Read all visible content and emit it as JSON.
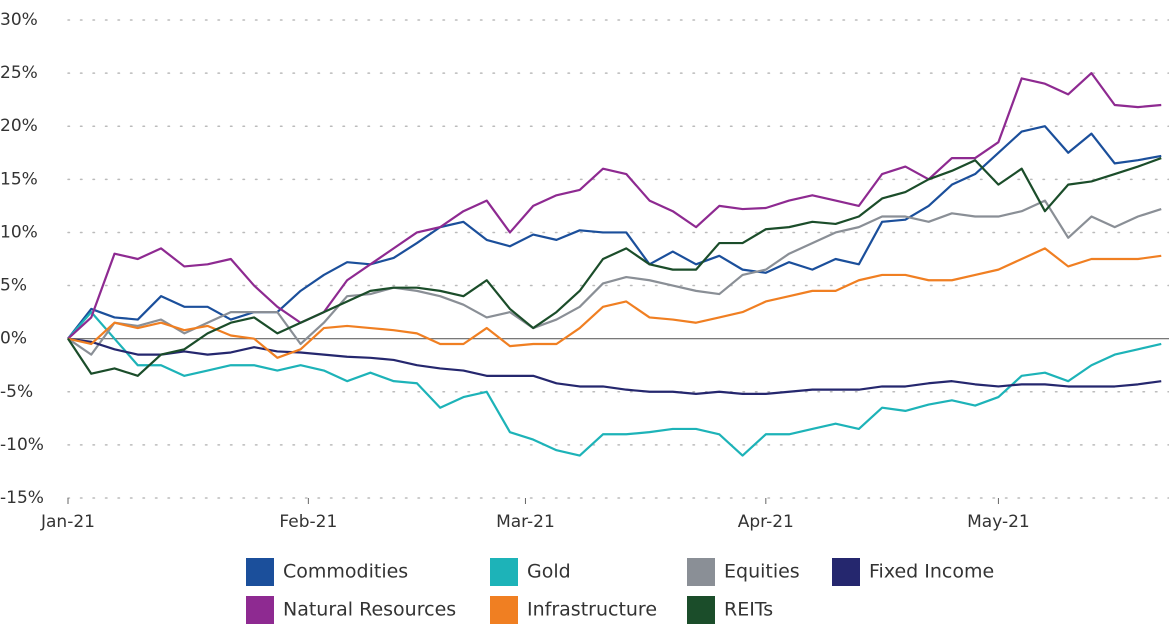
{
  "chart_data": {
    "type": "line",
    "x": [
      0,
      3,
      6,
      9,
      12,
      15,
      18,
      21,
      24,
      27,
      30,
      33,
      36,
      39,
      42,
      45,
      48,
      51,
      54,
      57,
      60,
      63,
      66,
      69,
      72,
      75,
      78,
      81,
      84,
      87,
      90,
      93,
      96,
      99,
      102,
      105,
      108,
      111,
      114,
      117,
      120,
      123,
      126,
      129,
      132,
      135,
      138,
      141
    ],
    "xlim": [
      0,
      142
    ],
    "xticks": [
      {
        "value": 0,
        "label": "Jan-21"
      },
      {
        "value": 31,
        "label": "Feb-21"
      },
      {
        "value": 59,
        "label": "Mar-21"
      },
      {
        "value": 90,
        "label": "Apr-21"
      },
      {
        "value": 120,
        "label": "May-21"
      }
    ],
    "ylim": [
      -15,
      30
    ],
    "yticks": [
      {
        "value": -15,
        "label": "-15%"
      },
      {
        "value": -10,
        "label": "-10%"
      },
      {
        "value": -5,
        "label": "-5%"
      },
      {
        "value": 0,
        "label": "0%"
      },
      {
        "value": 5,
        "label": "5%"
      },
      {
        "value": 10,
        "label": "10%"
      },
      {
        "value": 15,
        "label": "15%"
      },
      {
        "value": 20,
        "label": "20%"
      },
      {
        "value": 25,
        "label": "25%"
      },
      {
        "value": 30,
        "label": "30%"
      }
    ],
    "grid": true,
    "series": [
      {
        "name": "Commodities",
        "color": "#1b4f9b",
        "values": [
          0,
          2.8,
          2,
          1.8,
          4,
          3,
          3,
          1.8,
          2.5,
          2.5,
          4.5,
          6,
          7.2,
          7,
          7.6,
          9,
          10.5,
          11,
          9.3,
          8.7,
          9.8,
          9.3,
          10.2,
          10,
          10,
          7,
          8.2,
          7,
          7.8,
          6.5,
          6.2,
          7.2,
          6.5,
          7.5,
          7,
          11,
          11.2,
          12.5,
          14.5,
          15.5,
          17.5,
          19.5,
          20,
          17.5,
          19.3,
          16.5,
          16.8,
          17.2
        ]
      },
      {
        "name": "Gold",
        "color": "#1db3b8",
        "values": [
          0,
          2.5,
          0,
          -2.5,
          -2.5,
          -3.5,
          -3,
          -2.5,
          -2.5,
          -3,
          -2.5,
          -3,
          -4,
          -3.2,
          -4,
          -4.2,
          -6.5,
          -5.5,
          -5,
          -8.8,
          -9.5,
          -10.5,
          -11,
          -9,
          -9,
          -8.8,
          -8.5,
          -8.5,
          -9,
          -11,
          -9,
          -9,
          -8.5,
          -8,
          -8.5,
          -6.5,
          -6.8,
          -6.2,
          -5.8,
          -6.3,
          -5.5,
          -3.5,
          -3.2,
          -4,
          -2.5,
          -1.5,
          -1,
          -0.5
        ]
      },
      {
        "name": "Equities",
        "color": "#8a8f96",
        "values": [
          0,
          -1.5,
          1.5,
          1.2,
          1.8,
          0.5,
          1.5,
          2.5,
          2.5,
          2.5,
          -0.5,
          1.5,
          4,
          4.2,
          4.8,
          4.5,
          4,
          3.2,
          2,
          2.5,
          1,
          1.8,
          3,
          5.2,
          5.8,
          5.5,
          5,
          4.5,
          4.2,
          6,
          6.5,
          8,
          9,
          10,
          10.5,
          11.5,
          11.5,
          11,
          11.8,
          11.5,
          11.5,
          12,
          13,
          9.5,
          11.5,
          10.5,
          11.5,
          12.2
        ]
      },
      {
        "name": "Fixed Income",
        "color": "#25276e",
        "values": [
          0,
          -0.3,
          -1,
          -1.5,
          -1.5,
          -1.2,
          -1.5,
          -1.3,
          -0.8,
          -1.2,
          -1.3,
          -1.5,
          -1.7,
          -1.8,
          -2,
          -2.5,
          -2.8,
          -3,
          -3.5,
          -3.5,
          -3.5,
          -4.2,
          -4.5,
          -4.5,
          -4.8,
          -5,
          -5,
          -5.2,
          -5,
          -5.2,
          -5.2,
          -5,
          -4.8,
          -4.8,
          -4.8,
          -4.5,
          -4.5,
          -4.2,
          -4,
          -4.3,
          -4.5,
          -4.3,
          -4.3,
          -4.5,
          -4.5,
          -4.5,
          -4.3,
          -4
        ]
      },
      {
        "name": "Natural Resources",
        "color": "#8e2a91",
        "values": [
          0,
          2,
          8,
          7.5,
          8.5,
          6.8,
          7,
          7.5,
          5,
          3,
          1.5,
          2.5,
          5.5,
          7,
          8.5,
          10,
          10.5,
          12,
          13,
          10,
          12.5,
          13.5,
          14,
          16,
          15.5,
          13,
          12,
          10.5,
          12.5,
          12.2,
          12.3,
          13,
          13.5,
          13,
          12.5,
          15.5,
          16.2,
          15,
          17,
          17,
          18.5,
          24.5,
          24,
          23,
          25,
          22,
          21.8,
          22
        ]
      },
      {
        "name": "Infrastructure",
        "color": "#f07f22",
        "values": [
          0,
          -0.5,
          1.5,
          1,
          1.5,
          0.8,
          1.2,
          0.3,
          0,
          -1.8,
          -1,
          1,
          1.2,
          1,
          0.8,
          0.5,
          -0.5,
          -0.5,
          1,
          -0.7,
          -0.5,
          -0.5,
          1,
          3,
          3.5,
          2,
          1.8,
          1.5,
          2,
          2.5,
          3.5,
          4,
          4.5,
          4.5,
          5.5,
          6,
          6,
          5.5,
          5.5,
          6,
          6.5,
          7.5,
          8.5,
          6.8,
          7.5,
          7.5,
          7.5,
          7.8
        ]
      },
      {
        "name": "REITs",
        "color": "#1b4d2a",
        "values": [
          0,
          -3.3,
          -2.8,
          -3.5,
          -1.5,
          -1,
          0.5,
          1.5,
          2,
          0.5,
          1.5,
          2.5,
          3.5,
          4.5,
          4.8,
          4.8,
          4.5,
          4,
          5.5,
          2.8,
          1,
          2.5,
          4.5,
          7.5,
          8.5,
          7,
          6.5,
          6.5,
          9,
          9,
          10.3,
          10.5,
          11,
          10.8,
          11.5,
          13.2,
          13.8,
          15,
          15.8,
          16.8,
          14.5,
          16,
          12,
          14.5,
          14.8,
          15.5,
          16.2,
          17
        ]
      }
    ]
  }
}
